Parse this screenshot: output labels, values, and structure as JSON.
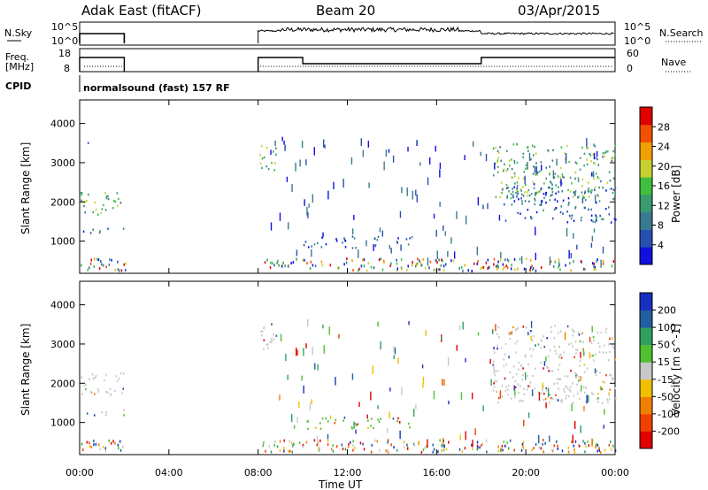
{
  "header": {
    "station": "Adak East (fitACF)",
    "beam": "Beam 20",
    "date": "03/Apr/2015"
  },
  "strips": {
    "nsky_label": "N.Sky",
    "nsky_ticks": [
      "10^5",
      "10^0"
    ],
    "nsearch_label": "N.Search",
    "nsearch_ticks": [
      "10^5",
      "10^0"
    ],
    "freq_label_1": "Freq.",
    "freq_label_2": "[MHz]",
    "freq_ticks": [
      "18",
      "8"
    ],
    "nave_label": "Nave",
    "nave_ticks": [
      "60",
      "0"
    ],
    "cpid_label": "CPID",
    "cpid_text": "normalsound (fast) 157 RF"
  },
  "colors": {
    "power": [
      "#1010e0",
      "#2850b0",
      "#3a7a90",
      "#3a9a70",
      "#3fbf3f",
      "#c8d030",
      "#f0a000",
      "#f05000",
      "#e00000"
    ],
    "velocity": [
      "#e00000",
      "#f04000",
      "#f08000",
      "#f0c000",
      "#c8c8c8",
      "#50c030",
      "#30a060",
      "#2060a0",
      "#1830c0"
    ]
  },
  "chart_data": [
    {
      "type": "heatmap",
      "panel": "power",
      "xlabel": "",
      "ylabel": "Slant Range [km]",
      "x_range": [
        "00:00",
        "00:00"
      ],
      "ylim": [
        180,
        4600
      ],
      "yticks": [
        "1000",
        "2000",
        "3000",
        "4000"
      ],
      "colorbar_label": "Power [dB]",
      "colorbar_ticks": [
        "4",
        "8",
        "12",
        "16",
        "20",
        "24",
        "28"
      ],
      "regions": [
        {
          "t0": 0.0,
          "t1": 2.0,
          "r0": 1700,
          "r1": 2300,
          "level": "mid"
        },
        {
          "t0": 0.0,
          "t1": 2.0,
          "r0": 1200,
          "r1": 1350,
          "level": "low"
        },
        {
          "t0": 0.1,
          "t1": 0.6,
          "r0": 3450,
          "r1": 3550,
          "level": "low"
        },
        {
          "t0": 8.0,
          "t1": 8.8,
          "r0": 2800,
          "r1": 3550,
          "level": "mid"
        },
        {
          "t0": 10.0,
          "t1": 13.5,
          "r0": 850,
          "r1": 1150,
          "level": "low"
        },
        {
          "t0": 14.0,
          "t1": 15.0,
          "r0": 850,
          "r1": 1150,
          "level": "low"
        },
        {
          "t0": 18.5,
          "t1": 24.0,
          "r0": 2100,
          "r1": 3500,
          "level": "mid"
        },
        {
          "t0": 19.0,
          "t1": 24.0,
          "r0": 1500,
          "r1": 2500,
          "level": "low"
        }
      ]
    },
    {
      "type": "heatmap",
      "panel": "velocity",
      "xlabel": "Time UT",
      "ylabel": "Slant Range [km]",
      "x_range": [
        "00:00",
        "00:00"
      ],
      "ylim": [
        180,
        4600
      ],
      "yticks": [
        "1000",
        "2000",
        "3000",
        "4000"
      ],
      "xticks": [
        "00:00",
        "04:00",
        "08:00",
        "12:00",
        "16:00",
        "20:00",
        "00:00"
      ],
      "colorbar_label": "Velocity [m s^-1]",
      "colorbar_ticks": [
        "200",
        "100",
        "50",
        "15",
        "-15",
        "-50",
        "-100",
        "-200"
      ],
      "regions": [
        {
          "t0": 0.0,
          "t1": 2.0,
          "r0": 1700,
          "r1": 2300,
          "level": "zero"
        },
        {
          "t0": 0.0,
          "t1": 2.0,
          "r0": 1200,
          "r1": 1350,
          "level": "zero"
        },
        {
          "t0": 8.0,
          "t1": 8.8,
          "r0": 2800,
          "r1": 3550,
          "level": "zero"
        },
        {
          "t0": 10.0,
          "t1": 13.5,
          "r0": 850,
          "r1": 1150,
          "level": "pos"
        },
        {
          "t0": 14.0,
          "t1": 15.0,
          "r0": 850,
          "r1": 1150,
          "level": "pos"
        },
        {
          "t0": 18.5,
          "t1": 24.0,
          "r0": 1500,
          "r1": 3500,
          "level": "zero"
        }
      ]
    }
  ]
}
